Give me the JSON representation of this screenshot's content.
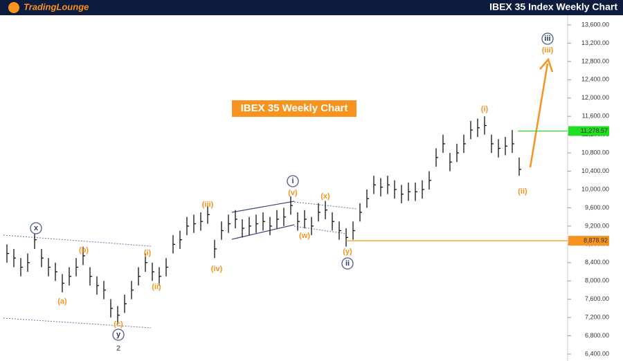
{
  "header": {
    "logo": "TradingLounge",
    "title": "IBEX 35 Index Weekly Chart"
  },
  "chart_data": {
    "type": "hlc",
    "title": "IBEX 35 Weekly Chart",
    "color": "#111111",
    "categories": [
      null,
      null,
      null,
      null,
      null,
      null,
      null,
      null,
      null,
      null,
      null,
      null,
      null,
      null,
      null,
      null,
      null,
      null,
      null,
      null,
      null,
      null,
      null,
      null,
      null,
      null,
      null,
      null,
      null,
      null,
      null,
      null,
      null,
      null,
      null,
      null,
      null,
      null,
      null,
      null,
      null,
      null,
      null,
      null,
      null,
      null,
      null,
      null,
      null,
      null,
      null,
      null,
      null,
      null,
      null,
      null,
      null,
      null,
      null,
      null,
      null,
      null,
      null,
      null,
      null,
      null,
      null,
      null,
      null,
      null,
      null,
      null,
      null,
      null,
      null
    ],
    "values": [
      8600,
      8500,
      8300,
      8400,
      8900,
      8500,
      8300,
      8200,
      7950,
      8100,
      8300,
      8550,
      8100,
      7900,
      7800,
      7400,
      7250,
      7500,
      7800,
      8100,
      8400,
      8200,
      8100,
      8300,
      8800,
      8900,
      9200,
      9250,
      9300,
      9450,
      8700,
      9100,
      9250,
      9350,
      9150,
      9200,
      9250,
      9300,
      9200,
      9350,
      9400,
      9650,
      9300,
      9350,
      9200,
      9500,
      9550,
      9300,
      9100,
      8950,
      9100,
      9500,
      9800,
      10100,
      10050,
      10100,
      10000,
      9900,
      9950,
      9950,
      10000,
      10200,
      10700,
      11000,
      10600,
      10800,
      11000,
      11300,
      11350,
      11400,
      11000,
      10900,
      10950,
      11000,
      10440
    ],
    "high": [
      8800,
      8700,
      8500,
      8600,
      9100,
      8700,
      8500,
      8400,
      8150,
      8300,
      8500,
      8750,
      8300,
      8100,
      8000,
      7600,
      7450,
      7700,
      8000,
      8300,
      8600,
      8400,
      8300,
      8500,
      9000,
      9100,
      9400,
      9450,
      9500,
      9650,
      8900,
      9300,
      9450,
      9550,
      9350,
      9400,
      9450,
      9500,
      9400,
      9550,
      9600,
      9850,
      9500,
      9550,
      9400,
      9700,
      9750,
      9500,
      9300,
      9150,
      9300,
      9700,
      10000,
      10300,
      10250,
      10300,
      10200,
      10100,
      10150,
      10150,
      10200,
      10400,
      10900,
      11200,
      10800,
      11000,
      11200,
      11500,
      11550,
      11600,
      11200,
      11100,
      11150,
      11300,
      10700
    ],
    "low": [
      8400,
      8300,
      8100,
      8200,
      8700,
      8300,
      8100,
      8000,
      7750,
      7900,
      8100,
      8350,
      7900,
      7700,
      7600,
      7200,
      7050,
      7300,
      7600,
      7900,
      8200,
      8000,
      7900,
      8100,
      8600,
      8700,
      9000,
      9050,
      9100,
      9250,
      8500,
      8900,
      9050,
      9150,
      8950,
      9000,
      9050,
      9100,
      9000,
      9150,
      9200,
      9450,
      9100,
      9150,
      9000,
      9300,
      9350,
      9100,
      8900,
      8750,
      8900,
      9300,
      9600,
      9900,
      9850,
      9900,
      9800,
      9700,
      9750,
      9750,
      9800,
      10000,
      10500,
      10800,
      10400,
      10600,
      10800,
      11100,
      11150,
      11200,
      10800,
      10700,
      10750,
      10800,
      10300
    ],
    "ylim": [
      6400,
      13600
    ],
    "yticks": [
      {
        "value": 6400,
        "label": "6,400.00"
      },
      {
        "value": 6800,
        "label": "6,800.00"
      },
      {
        "value": 7200,
        "label": "7,200.00"
      },
      {
        "value": 7600,
        "label": "7,600.00"
      },
      {
        "value": 8000,
        "label": "8,000.00"
      },
      {
        "value": 8400,
        "label": "8,400.00"
      },
      {
        "value": 8800,
        "label": "8,800.00"
      },
      {
        "value": 9200,
        "label": "9,200.00"
      },
      {
        "value": 9600,
        "label": "9,600.00"
      },
      {
        "value": 10000,
        "label": "10,000.00"
      },
      {
        "value": 10400,
        "label": "10,400.00"
      },
      {
        "value": 10800,
        "label": "10,800.00"
      },
      {
        "value": 11200,
        "label": "11,200.00"
      },
      {
        "value": 11600,
        "label": "11,600.00"
      },
      {
        "value": 12000,
        "label": "12,000.00"
      },
      {
        "value": 12400,
        "label": "12,400.00"
      },
      {
        "value": 12800,
        "label": "12,800.00"
      },
      {
        "value": 13200,
        "label": "13,200.00"
      },
      {
        "value": 13600,
        "label": "13,600.00"
      }
    ],
    "levels": [
      {
        "value": 11278.57,
        "label": "11,278.57",
        "color": "#22dd22"
      },
      {
        "value": 8878.92,
        "label": "8,878.92",
        "color": "#f7931e"
      }
    ],
    "annotations": [
      {
        "text": "x",
        "style": "circle"
      },
      {
        "text": "(b)",
        "style": "orange"
      },
      {
        "text": "(a)",
        "style": "orange"
      },
      {
        "text": "(c)",
        "style": "orange"
      },
      {
        "text": "y",
        "style": "circle"
      },
      {
        "text": "2",
        "style": "gray"
      },
      {
        "text": "(i)",
        "style": "orange"
      },
      {
        "text": "(ii)",
        "style": "orange"
      },
      {
        "text": "(iii)",
        "style": "orange"
      },
      {
        "text": "(iv)",
        "style": "orange"
      },
      {
        "text": "(v)",
        "style": "orange"
      },
      {
        "text": "i",
        "style": "circle"
      },
      {
        "text": "(w)",
        "style": "orange"
      },
      {
        "text": "(x)",
        "style": "orange"
      },
      {
        "text": "(y)",
        "style": "orange"
      },
      {
        "text": "ii",
        "style": "circle"
      },
      {
        "text": "(i)",
        "style": "orange"
      },
      {
        "text": "(ii)",
        "style": "orange"
      },
      {
        "text": "iii",
        "style": "circle"
      },
      {
        "text": "(iii)",
        "style": "orange"
      }
    ]
  }
}
